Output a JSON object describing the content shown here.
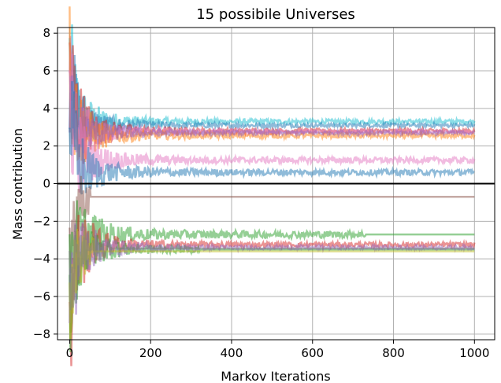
{
  "chart_data": {
    "type": "line",
    "title": "15 possibile Universes",
    "xlabel": "Markov Iterations",
    "ylabel": "Mass contribution",
    "xlim": [
      -30,
      1050
    ],
    "ylim": [
      -8.3,
      8.3
    ],
    "xticks": [
      0,
      200,
      400,
      600,
      800,
      1000
    ],
    "yticks": [
      -8,
      -6,
      -4,
      -2,
      0,
      2,
      4,
      6,
      8
    ],
    "xtick_labels": [
      "0",
      "200",
      "400",
      "600",
      "800",
      "1000"
    ],
    "ytick_labels": [
      "−8",
      "−6",
      "−4",
      "−2",
      "0",
      "2",
      "4",
      "6",
      "8"
    ],
    "grid": true,
    "legend": "none",
    "zero_line": 0,
    "iterations": 1000,
    "series": [
      {
        "color": "#17becf",
        "start": 6.6,
        "final": 3.3,
        "noise": 0.12,
        "stop": 1000
      },
      {
        "color": "#1f77b4",
        "start": 6.3,
        "final": 3.1,
        "noise": 0.1,
        "stop": 1000
      },
      {
        "color": "#d62728",
        "start": 7.0,
        "final": 2.8,
        "noise": 0.12,
        "stop": 1000
      },
      {
        "color": "#e377c2",
        "start": 5.5,
        "final": 2.75,
        "noise": 0.1,
        "stop": 1000
      },
      {
        "color": "#ff7f0e",
        "start": 6.2,
        "final": 2.55,
        "noise": 0.12,
        "stop": 1000
      },
      {
        "color": "#9467bd",
        "start": 4.9,
        "final": 2.7,
        "noise": 0.1,
        "stop": 1000
      },
      {
        "color": "#e377c2",
        "start": 5.0,
        "final": 1.25,
        "noise": 0.15,
        "stop": 1000
      },
      {
        "color": "#1f77b4",
        "start": 4.0,
        "final": 0.6,
        "noise": 0.15,
        "stop": 1000
      },
      {
        "color": "#8c564b",
        "start": -3.0,
        "final": -0.7,
        "noise": 0.0,
        "stop": 50
      },
      {
        "color": "#2ca02c",
        "start": -6.8,
        "final": -2.7,
        "noise": 0.18,
        "stop": 730
      },
      {
        "color": "#d62728",
        "start": -7.5,
        "final": -3.25,
        "noise": 0.13,
        "stop": 1000
      },
      {
        "color": "#2ca02c",
        "start": -6.5,
        "final": -3.5,
        "noise": 0.12,
        "stop": 320
      },
      {
        "color": "#9467bd",
        "start": -7.0,
        "final": -3.4,
        "noise": 0.1,
        "stop": 1000
      },
      {
        "color": "#bcbd22",
        "start": -6.0,
        "final": -3.6,
        "noise": 0.1,
        "stop": 60
      },
      {
        "color": "#7f7f7f",
        "start": -5.8,
        "final": -3.45,
        "noise": 0.1,
        "stop": 100
      }
    ]
  }
}
